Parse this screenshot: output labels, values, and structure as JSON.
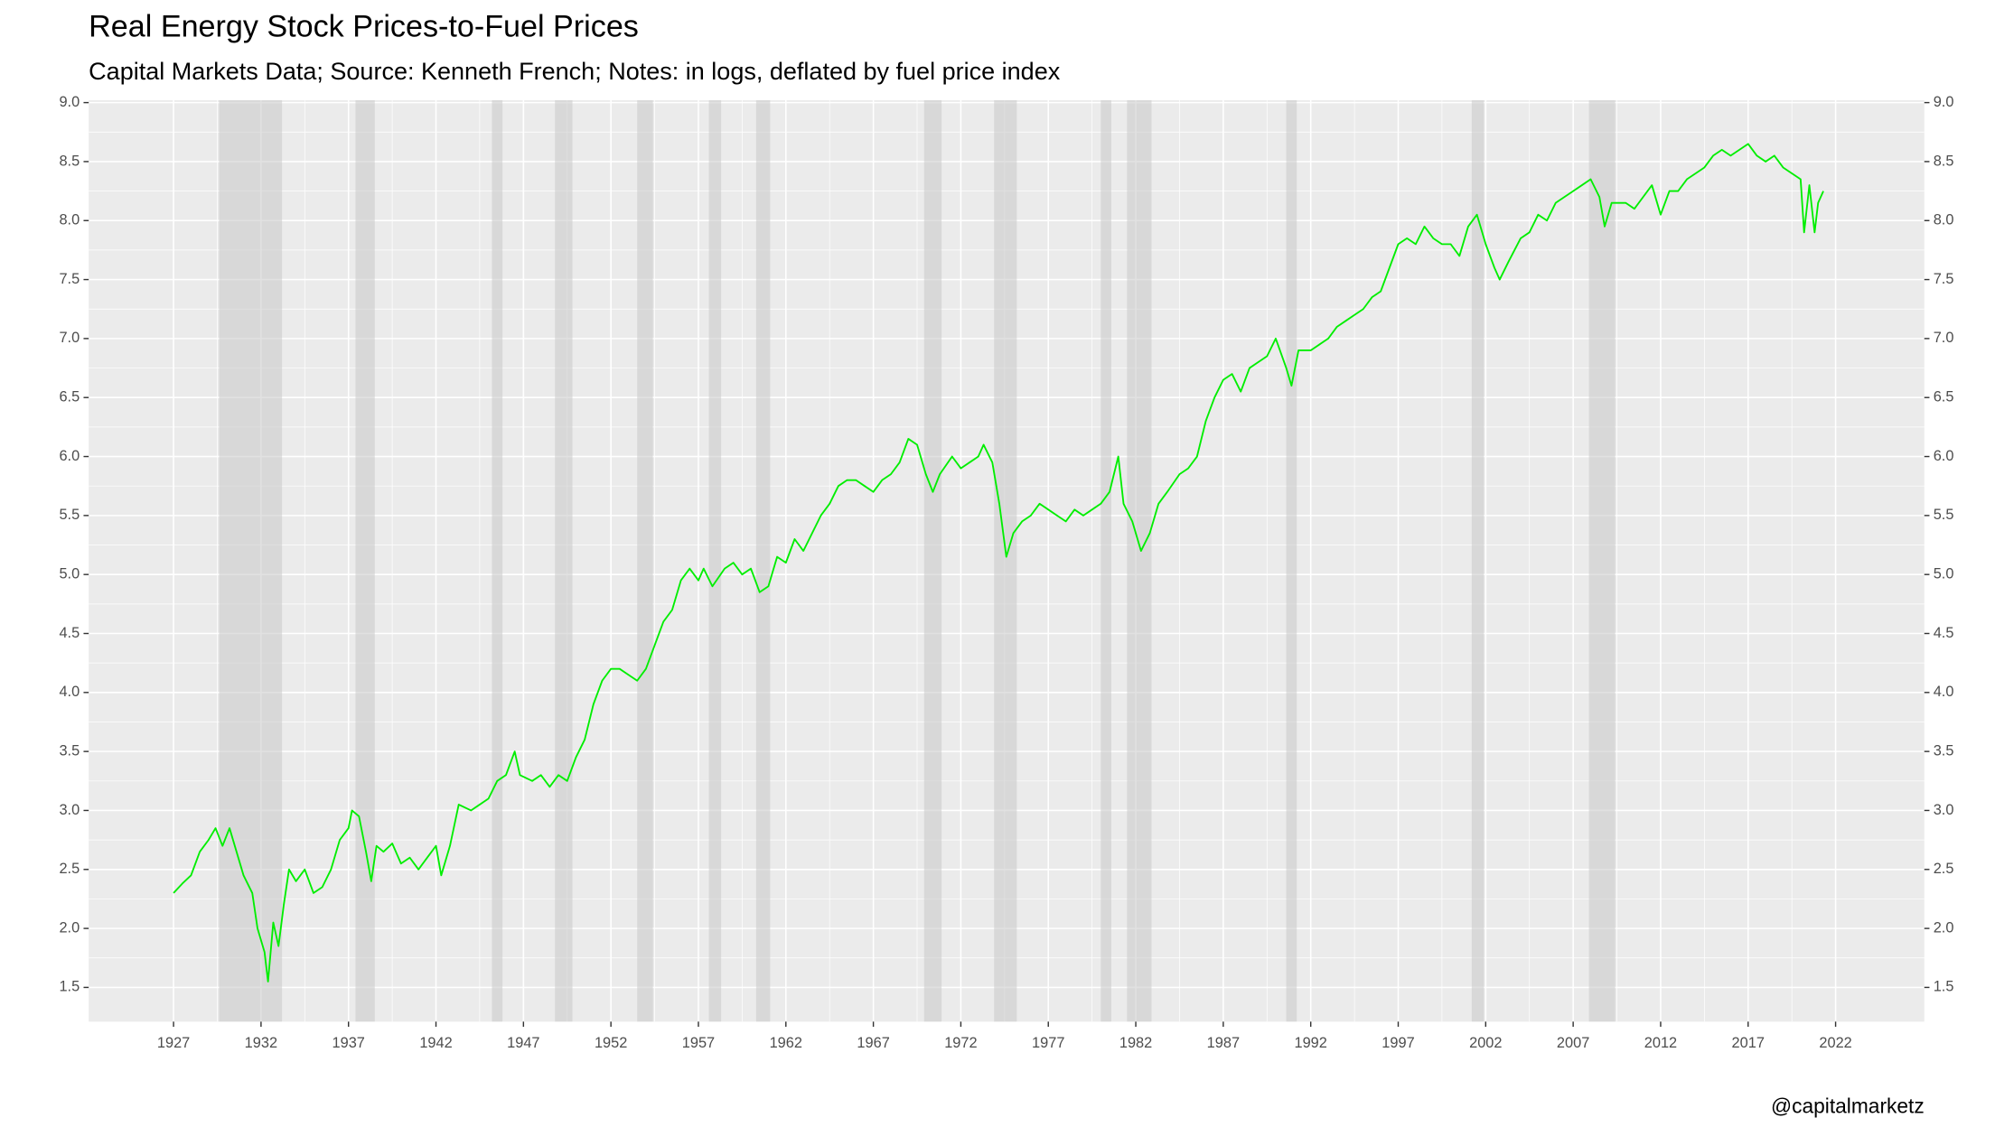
{
  "chart_data": {
    "type": "line",
    "title": "Real Energy Stock Prices-to-Fuel Prices",
    "subtitle": "Capital Markets Data; Source: Kenneth French; Notes: in logs, deflated by fuel price index",
    "caption": "@capitalmarketz",
    "color": "#00ee00",
    "grid": true,
    "xlim": [
      1922.15,
      2027.07
    ],
    "ylim": [
      1.21,
      9.02
    ],
    "xticks": [
      1927,
      1932,
      1937,
      1942,
      1947,
      1952,
      1957,
      1962,
      1967,
      1972,
      1977,
      1982,
      1987,
      1992,
      1997,
      2002,
      2007,
      2012,
      2017,
      2022
    ],
    "yticks": [
      1.5,
      {
        "value": 2,
        "label": "2.0"
      },
      2.5,
      {
        "value": 3,
        "label": "3.0"
      },
      3.5,
      {
        "value": 4,
        "label": "4.0"
      },
      4.5,
      {
        "value": 5,
        "label": "5.0"
      },
      5.5,
      {
        "value": 6,
        "label": "6.0"
      },
      6.5,
      {
        "value": 7,
        "label": "7.0"
      },
      7.5,
      {
        "value": 8,
        "label": "8.0"
      },
      8.5,
      {
        "value": 9,
        "label": "9.0"
      }
    ],
    "shaded_periods": [
      [
        1929.6,
        1933.2
      ],
      [
        1937.4,
        1938.5
      ],
      [
        1945.2,
        1945.8
      ],
      [
        1948.8,
        1949.8
      ],
      [
        1953.5,
        1954.4
      ],
      [
        1957.6,
        1958.3
      ],
      [
        1960.3,
        1961.1
      ],
      [
        1969.9,
        1970.9
      ],
      [
        1973.9,
        1975.2
      ],
      [
        1980.0,
        1980.6
      ],
      [
        1981.5,
        1982.9
      ],
      [
        1990.6,
        1991.2
      ],
      [
        2001.2,
        2001.9
      ],
      [
        2007.9,
        2009.4
      ]
    ],
    "x": [
      1927.0,
      1927.5,
      1928.0,
      1928.5,
      1929.0,
      1929.4,
      1929.8,
      1930.2,
      1930.6,
      1931.0,
      1931.5,
      1931.8,
      1932.2,
      1932.4,
      1932.7,
      1933.0,
      1933.3,
      1933.6,
      1934.0,
      1934.5,
      1935.0,
      1935.5,
      1936.0,
      1936.5,
      1937.0,
      1937.2,
      1937.6,
      1938.0,
      1938.3,
      1938.6,
      1939.0,
      1939.5,
      1940.0,
      1940.5,
      1941.0,
      1941.5,
      1942.0,
      1942.3,
      1942.8,
      1943.3,
      1944.0,
      1944.5,
      1945.0,
      1945.5,
      1946.0,
      1946.5,
      1946.8,
      1947.5,
      1948.0,
      1948.5,
      1949.0,
      1949.5,
      1950.0,
      1950.5,
      1951.0,
      1951.5,
      1952.0,
      1952.5,
      1953.0,
      1953.5,
      1954.0,
      1954.5,
      1955.0,
      1955.5,
      1956.0,
      1956.5,
      1957.0,
      1957.3,
      1957.8,
      1958.5,
      1959.0,
      1959.5,
      1960.0,
      1960.5,
      1961.0,
      1961.5,
      1962.0,
      1962.5,
      1963.0,
      1963.5,
      1964.0,
      1964.5,
      1965.0,
      1965.5,
      1966.0,
      1966.5,
      1967.0,
      1967.5,
      1968.0,
      1968.5,
      1969.0,
      1969.5,
      1970.0,
      1970.4,
      1970.8,
      1971.5,
      1972.0,
      1972.5,
      1973.0,
      1973.3,
      1973.8,
      1974.2,
      1974.6,
      1975.0,
      1975.5,
      1976.0,
      1976.5,
      1977.0,
      1977.5,
      1978.0,
      1978.5,
      1979.0,
      1979.5,
      1980.0,
      1980.5,
      1981.0,
      1981.3,
      1981.8,
      1982.3,
      1982.8,
      1983.3,
      1983.8,
      1984.5,
      1985.0,
      1985.5,
      1986.0,
      1986.5,
      1987.0,
      1987.5,
      1988.0,
      1988.5,
      1989.0,
      1989.5,
      1990.0,
      1990.6,
      1990.9,
      1991.3,
      1992.0,
      1992.5,
      1993.0,
      1993.5,
      1994.0,
      1994.5,
      1995.0,
      1995.5,
      1996.0,
      1996.5,
      1997.0,
      1997.5,
      1998.0,
      1998.5,
      1999.0,
      1999.5,
      2000.0,
      2000.5,
      2001.0,
      2001.5,
      2002.0,
      2002.5,
      2002.8,
      2003.3,
      2004.0,
      2004.5,
      2005.0,
      2005.5,
      2006.0,
      2006.5,
      2007.0,
      2007.5,
      2008.0,
      2008.5,
      2008.8,
      2009.2,
      2010.0,
      2010.5,
      2011.0,
      2011.5,
      2012.0,
      2012.5,
      2013.0,
      2013.5,
      2014.0,
      2014.5,
      2015.0,
      2015.5,
      2016.0,
      2016.5,
      2017.0,
      2017.5,
      2018.0,
      2018.5,
      2019.0,
      2019.5,
      2020.0,
      2020.2,
      2020.5,
      2020.8,
      2021.0,
      2021.3
    ],
    "values": [
      2.3,
      2.38,
      2.45,
      2.65,
      2.75,
      2.85,
      2.7,
      2.85,
      2.65,
      2.45,
      2.3,
      2.0,
      1.8,
      1.55,
      2.05,
      1.85,
      2.2,
      2.5,
      2.4,
      2.5,
      2.3,
      2.35,
      2.5,
      2.75,
      2.85,
      3.0,
      2.95,
      2.65,
      2.4,
      2.7,
      2.65,
      2.72,
      2.55,
      2.6,
      2.5,
      2.6,
      2.7,
      2.45,
      2.7,
      3.05,
      3.0,
      3.05,
      3.1,
      3.25,
      3.3,
      3.5,
      3.3,
      3.25,
      3.3,
      3.2,
      3.3,
      3.25,
      3.45,
      3.6,
      3.9,
      4.1,
      4.2,
      4.2,
      4.15,
      4.1,
      4.2,
      4.4,
      4.6,
      4.7,
      4.95,
      5.05,
      4.95,
      5.05,
      4.9,
      5.05,
      5.1,
      5.0,
      5.05,
      4.85,
      4.9,
      5.15,
      5.1,
      5.3,
      5.2,
      5.35,
      5.5,
      5.6,
      5.75,
      5.8,
      5.8,
      5.75,
      5.7,
      5.8,
      5.85,
      5.95,
      6.15,
      6.1,
      5.85,
      5.7,
      5.85,
      6.0,
      5.9,
      5.95,
      6.0,
      6.1,
      5.95,
      5.6,
      5.15,
      5.35,
      5.45,
      5.5,
      5.6,
      5.55,
      5.5,
      5.45,
      5.55,
      5.5,
      5.55,
      5.6,
      5.7,
      6.0,
      5.6,
      5.45,
      5.2,
      5.35,
      5.6,
      5.7,
      5.85,
      5.9,
      6.0,
      6.3,
      6.5,
      6.65,
      6.7,
      6.55,
      6.75,
      6.8,
      6.85,
      7.0,
      6.75,
      6.6,
      6.9,
      6.9,
      6.95,
      7.0,
      7.1,
      7.15,
      7.2,
      7.25,
      7.35,
      7.4,
      7.6,
      7.8,
      7.85,
      7.8,
      7.95,
      7.85,
      7.8,
      7.8,
      7.7,
      7.95,
      8.05,
      7.8,
      7.6,
      7.5,
      7.65,
      7.85,
      7.9,
      8.05,
      8.0,
      8.15,
      8.2,
      8.25,
      8.3,
      8.35,
      8.2,
      7.95,
      8.15,
      8.15,
      8.1,
      8.2,
      8.3,
      8.05,
      8.25,
      8.25,
      8.35,
      8.4,
      8.45,
      8.55,
      8.6,
      8.55,
      8.6,
      8.65,
      8.55,
      8.5,
      8.55,
      8.45,
      8.4,
      8.35,
      7.9,
      8.3,
      7.9,
      8.15,
      8.25
    ]
  }
}
